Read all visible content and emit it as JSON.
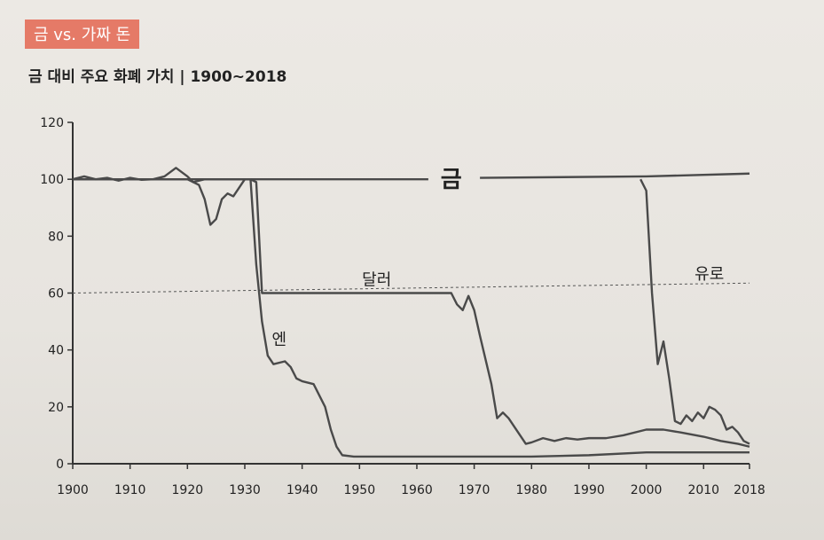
{
  "section_tag": "금 vs. 가짜 돈",
  "colors": {
    "tag_bg": "#e57a67",
    "line": "#4a4a4a",
    "axis": "#333333"
  },
  "chart_data": {
    "type": "line",
    "title": "금 대비 주요 화폐 가치 | 1900~2018",
    "xlabel": "",
    "ylabel": "",
    "xlim": [
      1900,
      2018
    ],
    "ylim": [
      0,
      120
    ],
    "x_ticks": [
      1900,
      1910,
      1920,
      1930,
      1940,
      1950,
      1960,
      1970,
      1980,
      1990,
      2000,
      2010,
      2018
    ],
    "y_ticks": [
      0,
      20,
      40,
      60,
      80,
      100,
      120
    ],
    "reference_line": {
      "y": 60
    },
    "grid": false,
    "legend": "none",
    "series": [
      {
        "name": "금",
        "label_at": [
          1966,
          100
        ],
        "gap_x": [
          1962,
          1971
        ],
        "points": [
          [
            1900,
            100
          ],
          [
            1962,
            100
          ],
          [
            1971,
            100.5
          ],
          [
            2000,
            101
          ],
          [
            2018,
            102
          ]
        ]
      },
      {
        "name": "달러",
        "label_at": [
          1953,
          65
        ],
        "points": [
          [
            1900,
            100
          ],
          [
            1902,
            101
          ],
          [
            1904,
            100
          ],
          [
            1906,
            100.5
          ],
          [
            1908,
            99.5
          ],
          [
            1910,
            100.5
          ],
          [
            1912,
            99.8
          ],
          [
            1914,
            100
          ],
          [
            1916,
            101
          ],
          [
            1918,
            104
          ],
          [
            1920,
            101
          ],
          [
            1921,
            99
          ],
          [
            1923,
            100
          ],
          [
            1926,
            100
          ],
          [
            1929,
            100
          ],
          [
            1931,
            100
          ],
          [
            1932,
            99
          ],
          [
            1933,
            60
          ],
          [
            1950,
            60
          ],
          [
            1966,
            60
          ],
          [
            1967,
            56
          ],
          [
            1968,
            54
          ],
          [
            1969,
            59
          ],
          [
            1970,
            54
          ],
          [
            1971,
            45
          ],
          [
            1973,
            28
          ],
          [
            1974,
            16
          ],
          [
            1975,
            18
          ],
          [
            1976,
            16
          ],
          [
            1978,
            10
          ],
          [
            1979,
            7
          ],
          [
            1980,
            7.5
          ],
          [
            1982,
            9
          ],
          [
            1984,
            8
          ],
          [
            1986,
            9
          ],
          [
            1988,
            8.5
          ],
          [
            1990,
            9
          ],
          [
            1993,
            9
          ],
          [
            1996,
            10
          ],
          [
            2000,
            12
          ],
          [
            2003,
            12
          ],
          [
            2006,
            11
          ],
          [
            2010,
            9.5
          ],
          [
            2013,
            8
          ],
          [
            2016,
            7
          ],
          [
            2018,
            6
          ]
        ]
      },
      {
        "name": "엔",
        "label_at": [
          1936,
          44
        ],
        "points": [
          [
            1900,
            100
          ],
          [
            1910,
            100
          ],
          [
            1920,
            100
          ],
          [
            1922,
            98
          ],
          [
            1923,
            93
          ],
          [
            1924,
            84
          ],
          [
            1925,
            86
          ],
          [
            1926,
            93
          ],
          [
            1927,
            95
          ],
          [
            1928,
            94
          ],
          [
            1929,
            97
          ],
          [
            1930,
            100
          ],
          [
            1931,
            100
          ],
          [
            1932,
            70
          ],
          [
            1933,
            50
          ],
          [
            1934,
            38
          ],
          [
            1935,
            35
          ],
          [
            1937,
            36
          ],
          [
            1938,
            34
          ],
          [
            1939,
            30
          ],
          [
            1940,
            29
          ],
          [
            1942,
            28
          ],
          [
            1944,
            20
          ],
          [
            1945,
            12
          ],
          [
            1946,
            6
          ],
          [
            1947,
            3
          ],
          [
            1949,
            2.5
          ],
          [
            1980,
            2.5
          ],
          [
            1990,
            3
          ],
          [
            2000,
            4
          ],
          [
            2010,
            4
          ],
          [
            2018,
            4
          ]
        ]
      },
      {
        "name": "유로",
        "label_at": [
          2011,
          67
        ],
        "points": [
          [
            1999,
            100
          ],
          [
            2000,
            96
          ],
          [
            2001,
            60
          ],
          [
            2002,
            35
          ],
          [
            2003,
            43
          ],
          [
            2004,
            30
          ],
          [
            2005,
            15
          ],
          [
            2006,
            14
          ],
          [
            2007,
            17
          ],
          [
            2008,
            15
          ],
          [
            2009,
            18
          ],
          [
            2010,
            16
          ],
          [
            2011,
            20
          ],
          [
            2012,
            19
          ],
          [
            2013,
            17
          ],
          [
            2014,
            12
          ],
          [
            2015,
            13
          ],
          [
            2016,
            11
          ],
          [
            2017,
            8
          ],
          [
            2018,
            7
          ]
        ]
      }
    ]
  }
}
